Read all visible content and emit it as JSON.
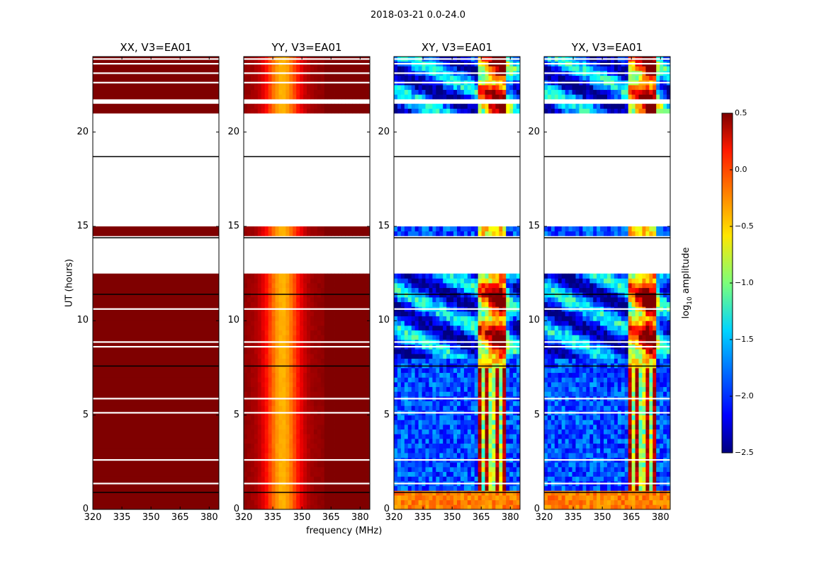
{
  "title": "2018-03-21 0.0-24.0",
  "chart_data": {
    "type": "heatmap",
    "panels": [
      {
        "title": "XX, V3=EA01",
        "product": "XX"
      },
      {
        "title": "YY, V3=EA01",
        "product": "YY"
      },
      {
        "title": "XY, V3=EA01",
        "product": "XY"
      },
      {
        "title": "YX, V3=EA01",
        "product": "YX"
      }
    ],
    "xlabel": "frequency (MHz)",
    "ylabel": "UT (hours)",
    "xlim": [
      320,
      385
    ],
    "ylim": [
      0,
      24
    ],
    "xticks": [
      "320",
      "335",
      "350",
      "365",
      "380"
    ],
    "xtick_values": [
      320,
      335,
      350,
      365,
      380
    ],
    "yticks": [
      "0",
      "5",
      "10",
      "15",
      "20"
    ],
    "ytick_values": [
      0,
      5,
      10,
      15,
      20
    ],
    "colorbar": {
      "label": "log10 amplitude",
      "min": -2.5,
      "max": 0.5,
      "ticks": [
        "−2.5",
        "−2.0",
        "−1.5",
        "−1.0",
        "−0.5",
        "0.0",
        "0.5"
      ],
      "tick_values": [
        -2.5,
        -2.0,
        -1.5,
        -1.0,
        -0.5,
        0.0,
        0.5
      ],
      "colormap": "jet"
    },
    "data_gaps_ut": [
      [
        18.5,
        20.5
      ],
      [
        15.0,
        18.7
      ],
      [
        12.5,
        14.4
      ]
    ],
    "dark_lines_ut": [
      14.4,
      18.7,
      0.9,
      7.6,
      11.4
    ]
  }
}
